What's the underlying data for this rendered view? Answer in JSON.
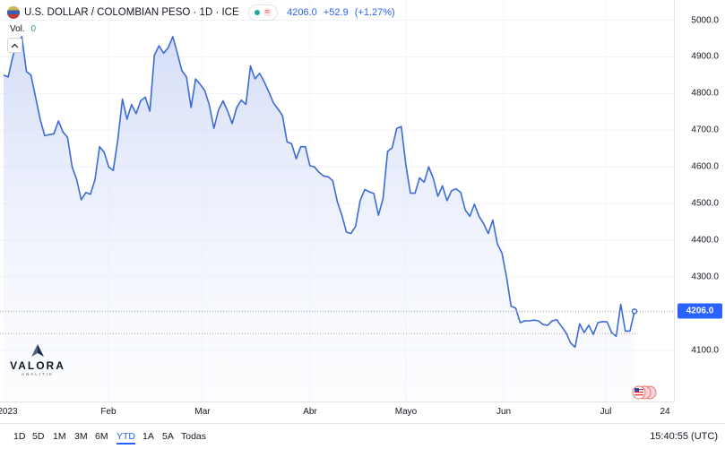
{
  "header": {
    "title": "U.S. DOLLAR / COLOMBIAN PESO · 1D · ICE",
    "last": "4206.0",
    "change": "+52.9",
    "change_pct": "(+1.27%)",
    "flag_icon": "usd-cop-flag-icon",
    "status_icon": "market-status-dot-icon",
    "wave_icon": "approx-wave-icon"
  },
  "volume": {
    "label": "Vol.",
    "value": "0"
  },
  "logo": {
    "name": "VALORA",
    "sub": "ANALITIK"
  },
  "colors": {
    "line": "#3b6bd6",
    "fill_top": "#c7d3f6",
    "accent": "#2962ff",
    "positive": "#26a69a"
  },
  "time_ranges": [
    "1D",
    "5D",
    "1M",
    "3M",
    "6M",
    "YTD",
    "1A",
    "5A",
    "Todas"
  ],
  "active_range": "YTD",
  "clock": "15:40:55 (UTC)",
  "chart_data": {
    "type": "line",
    "title": "U.S. DOLLAR / COLOMBIAN PESO · 1D · ICE",
    "xlabel": "",
    "ylabel": "",
    "ylim": [
      3960,
      5055
    ],
    "y_ticks": [
      "5000.0",
      "4900.0",
      "4800.0",
      "4700.0",
      "4600.0",
      "4500.0",
      "4400.0",
      "4300.0",
      "4100.0"
    ],
    "x_ticks": [
      "2023",
      "Feb",
      "Mar",
      "Abr",
      "Mayo",
      "Jun",
      "Jul",
      "24"
    ],
    "last_price": "4206.0",
    "grid": true,
    "series": [
      {
        "values": [
          4850,
          4845,
          4900,
          4940,
          4955,
          4860,
          4850,
          4790,
          4730,
          4685,
          4688,
          4690,
          4725,
          4695,
          4680,
          4600,
          4565,
          4510,
          4530,
          4525,
          4565,
          4655,
          4640,
          4600,
          4590,
          4675,
          4785,
          4730,
          4770,
          4745,
          4780,
          4790,
          4752,
          4905,
          4930,
          4910,
          4925,
          4955,
          4910,
          4862,
          4845,
          4762,
          4840,
          4825,
          4808,
          4768,
          4705,
          4755,
          4780,
          4752,
          4718,
          4762,
          4782,
          4770,
          4875,
          4840,
          4855,
          4832,
          4805,
          4775,
          4758,
          4740,
          4668,
          4663,
          4622,
          4655,
          4655,
          4603,
          4600,
          4585,
          4575,
          4573,
          4562,
          4505,
          4468,
          4422,
          4418,
          4438,
          4508,
          4538,
          4532,
          4527,
          4468,
          4513,
          4642,
          4652,
          4705,
          4710,
          4605,
          4528,
          4528,
          4570,
          4558,
          4600,
          4568,
          4520,
          4548,
          4508,
          4535,
          4540,
          4530,
          4482,
          4465,
          4498,
          4465,
          4445,
          4418,
          4455,
          4390,
          4365,
          4300,
          4220,
          4215,
          4175,
          4180,
          4180,
          4182,
          4180,
          4170,
          4168,
          4180,
          4183,
          4165,
          4148,
          4120,
          4108,
          4172,
          4148,
          4168,
          4143,
          4175,
          4178,
          4177,
          4148,
          4138,
          4225,
          4152,
          4152,
          4206
        ]
      }
    ]
  }
}
